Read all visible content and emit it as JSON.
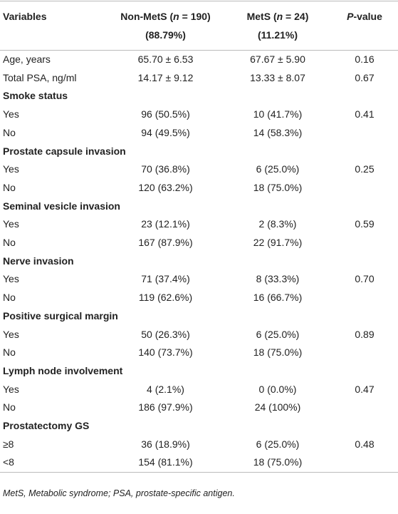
{
  "header": {
    "variables": "Variables",
    "non_mets": {
      "before": "Non-MetS (",
      "italic": "n",
      "after": " = 190)",
      "line2": "(88.79%)"
    },
    "mets": {
      "before": "MetS (",
      "italic": "n",
      "after": " = 24)",
      "line2": "(11.21%)"
    },
    "p_value": {
      "italic": "P",
      "after": "-value"
    }
  },
  "table": {
    "rows": [
      [
        "Age, years",
        "65.70 ± 6.53",
        "67.67 ± 5.90",
        "0.16"
      ],
      [
        "Total PSA, ng/ml",
        "14.17 ± 9.12",
        "13.33 ± 8.07",
        "0.67"
      ],
      [
        "Smoke status"
      ],
      [
        "Yes",
        "96 (50.5%)",
        "10 (41.7%)",
        "0.41"
      ],
      [
        "No",
        "94 (49.5%)",
        "14 (58.3%)",
        ""
      ],
      [
        "Prostate capsule invasion"
      ],
      [
        "Yes",
        "70 (36.8%)",
        "6 (25.0%)",
        "0.25"
      ],
      [
        "No",
        "120 (63.2%)",
        "18 (75.0%)",
        ""
      ],
      [
        "Seminal vesicle invasion"
      ],
      [
        "Yes",
        "23 (12.1%)",
        "2 (8.3%)",
        "0.59"
      ],
      [
        "No",
        "167 (87.9%)",
        "22 (91.7%)",
        ""
      ],
      [
        "Nerve invasion"
      ],
      [
        "Yes",
        "71 (37.4%)",
        "8 (33.3%)",
        "0.70"
      ],
      [
        "No",
        "119 (62.6%)",
        "16 (66.7%)",
        ""
      ],
      [
        "Positive surgical margin"
      ],
      [
        "Yes",
        "50 (26.3%)",
        "6 (25.0%)",
        "0.89"
      ],
      [
        "No",
        "140 (73.7%)",
        "18 (75.0%)",
        ""
      ],
      [
        "Lymph node involvement"
      ],
      [
        "Yes",
        "4 (2.1%)",
        "0 (0.0%)",
        "0.47"
      ],
      [
        "No",
        "186 (97.9%)",
        "24 (100%)",
        ""
      ],
      [
        "Prostatectomy GS"
      ],
      [
        "≥8",
        "36 (18.9%)",
        "6 (25.0%)",
        "0.48"
      ],
      [
        "<8",
        "154 (81.1%)",
        "18 (75.0%)",
        ""
      ]
    ]
  },
  "footnote": "MetS, Metabolic syndrome; PSA, prostate-specific antigen."
}
